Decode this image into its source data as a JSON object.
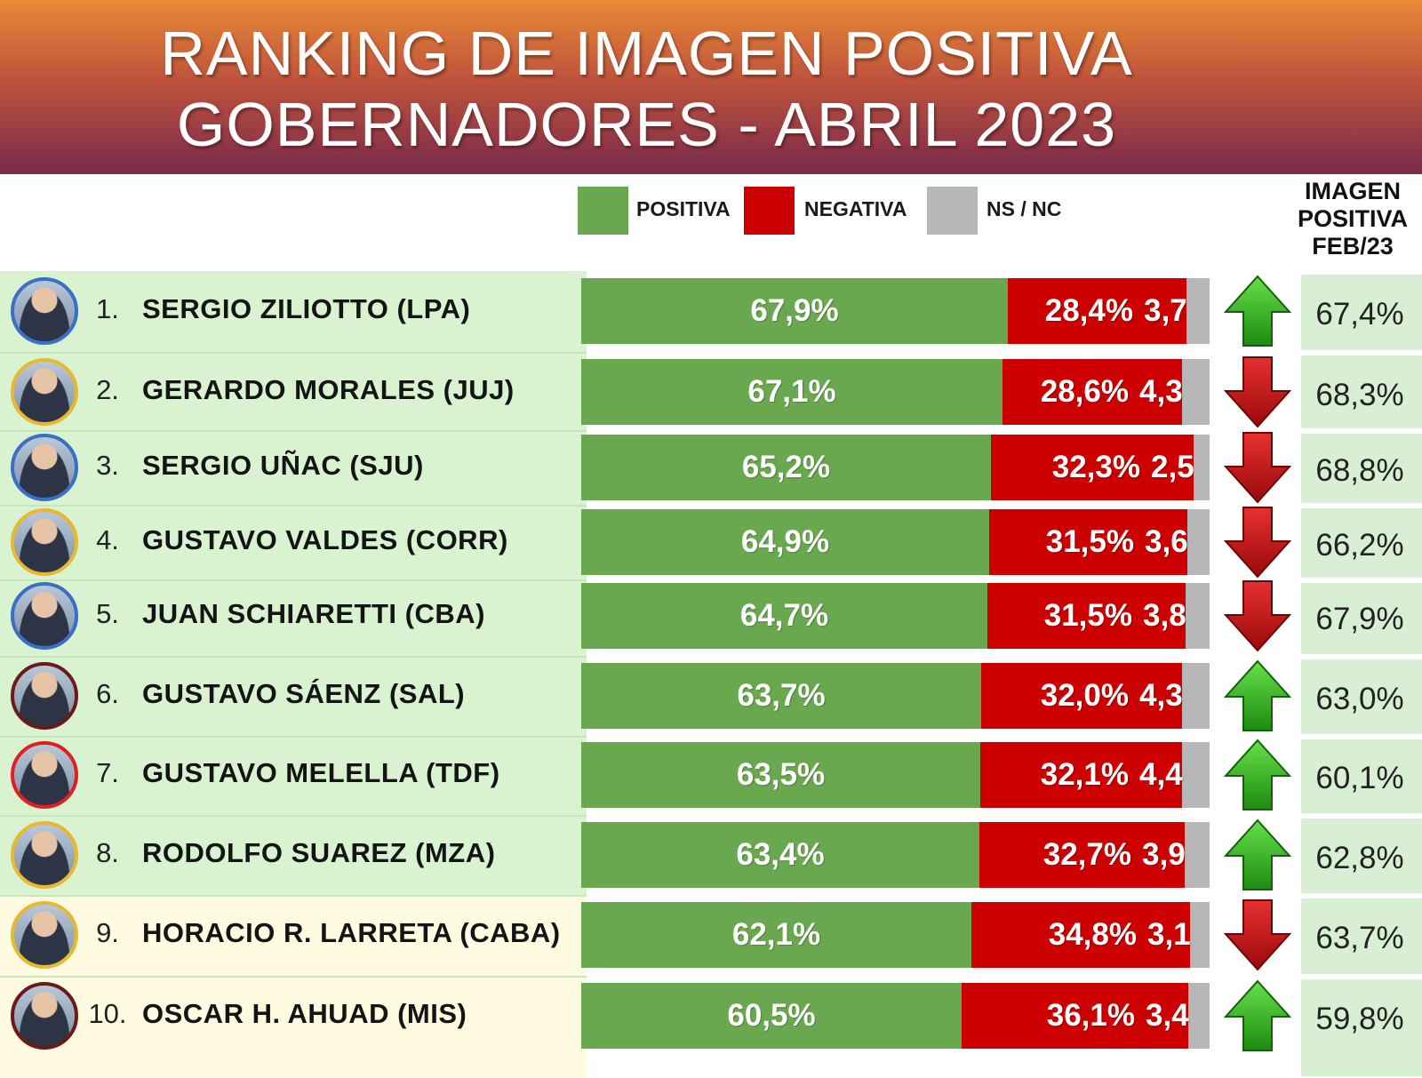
{
  "title": {
    "line1": "RANKING DE IMAGEN POSITIVA",
    "line2": "GOBERNADORES - ABRIL 2023"
  },
  "legend": [
    {
      "label": "POSITIVA",
      "color": "#6aa84f"
    },
    {
      "label": "NEGATIVA",
      "color": "#cc0000"
    },
    {
      "label": "NS / NC",
      "color": "#b7b7b7"
    }
  ],
  "feb_column_header": [
    "IMAGEN",
    "POSITIVA",
    "FEB/23"
  ],
  "colors": {
    "positive": "#6aa84f",
    "negative": "#cc0000",
    "nsnc": "#b7b7b7",
    "row_green": "#d9f2d0",
    "row_yellow": "#fffbe0",
    "arrow_up": "#33b820",
    "arrow_down": "#cc1414"
  },
  "chart_data": {
    "type": "bar",
    "orientation": "horizontal-stacked",
    "title": "RANKING DE IMAGEN POSITIVA GOBERNADORES - ABRIL 2023",
    "unit": "%",
    "categories": [
      "SERGIO ZILIOTTO (LPA)",
      "GERARDO MORALES (JUJ)",
      "SERGIO UÑAC (SJU)",
      "GUSTAVO VALDES (CORR)",
      "JUAN SCHIARETTI (CBA)",
      "GUSTAVO SÁENZ (SAL)",
      "GUSTAVO MELELLA (TDF)",
      "RODOLFO SUAREZ (MZA)",
      "HORACIO R. LARRETA (CABA)",
      "OSCAR H. AHUAD (MIS)"
    ],
    "ranks": [
      "1.",
      "2.",
      "3.",
      "4.",
      "5.",
      "6.",
      "7.",
      "8.",
      "9.",
      "10."
    ],
    "series": [
      {
        "name": "POSITIVA",
        "values": [
          67.9,
          67.1,
          65.2,
          64.9,
          64.7,
          63.7,
          63.5,
          63.4,
          62.1,
          60.5
        ],
        "labels": [
          "67,9%",
          "67,1%",
          "65,2%",
          "64,9%",
          "64,7%",
          "63,7%",
          "63,5%",
          "63,4%",
          "62,1%",
          "60,5%"
        ]
      },
      {
        "name": "NEGATIVA",
        "values": [
          28.4,
          28.6,
          32.3,
          31.5,
          31.5,
          32.0,
          32.1,
          32.7,
          34.8,
          36.1
        ],
        "labels": [
          "28,4%",
          "28,6%",
          "32,3%",
          "31,5%",
          "31,5%",
          "32,0%",
          "32,1%",
          "32,7%",
          "34,8%",
          "36,1%"
        ]
      },
      {
        "name": "NS / NC",
        "values": [
          3.7,
          4.3,
          2.5,
          3.6,
          3.8,
          4.3,
          4.4,
          3.9,
          3.1,
          3.4
        ],
        "labels": [
          "3,7",
          "4,3",
          "2,5",
          "3,6",
          "3,8",
          "4,3",
          "4,4",
          "3,9",
          "3,1",
          "3,4"
        ]
      }
    ],
    "trend": [
      "up",
      "down",
      "down",
      "down",
      "down",
      "up",
      "up",
      "up",
      "down",
      "up"
    ],
    "feb23": {
      "values": [
        67.4,
        68.3,
        68.8,
        66.2,
        67.9,
        63.0,
        60.1,
        62.8,
        63.7,
        59.8
      ],
      "labels": [
        "67,4%",
        "68,3%",
        "68,8%",
        "66,2%",
        "67,9%",
        "63,0%",
        "60,1%",
        "62,8%",
        "63,7%",
        "59,8%"
      ]
    },
    "row_highlight": [
      "green",
      "green",
      "green",
      "green",
      "green",
      "green",
      "green",
      "green",
      "yellow",
      "yellow"
    ],
    "avatar_ring": [
      "#3a6fc4",
      "#e8b830",
      "#3a6fc4",
      "#e8b830",
      "#3a6fc4",
      "#6b1a1a",
      "#e02020",
      "#e8b830",
      "#e8b830",
      "#6b1a1a"
    ]
  }
}
